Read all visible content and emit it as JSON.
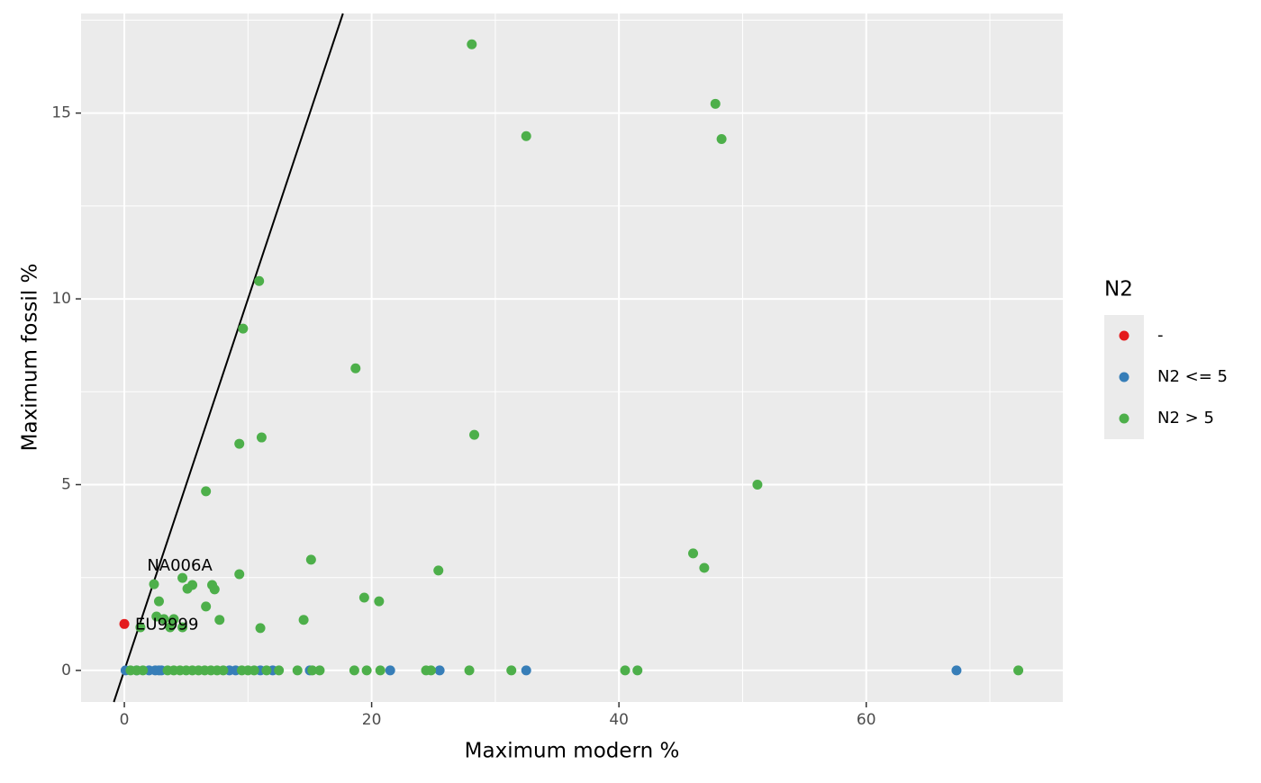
{
  "chart_data": {
    "type": "scatter",
    "x_label": "Maximum modern %",
    "y_label": "Maximum fossil %",
    "legend_title": "N2",
    "legend_position": "right",
    "grid": true,
    "xlim": [
      -3.5,
      75.9
    ],
    "ylim": [
      -0.85,
      17.68
    ],
    "xticks": [
      0,
      20,
      40,
      60
    ],
    "yticks": [
      0,
      5,
      10,
      15
    ],
    "abline": {
      "slope": 1,
      "intercept": 0,
      "color": "#000000"
    },
    "series": [
      {
        "name": "-",
        "color": "#e41a1c",
        "x": [
          0
        ],
        "values": [
          1.25
        ]
      },
      {
        "name": "N2 <= 5",
        "color": "#377eb8",
        "x": [
          0.1,
          1,
          2,
          2.5,
          2.8,
          3,
          8.5,
          9,
          11,
          12,
          15,
          21.5,
          25.5,
          32.5,
          67.3
        ],
        "values": [
          0,
          0,
          0,
          0,
          0,
          0,
          0,
          0,
          0,
          0,
          0,
          0,
          0,
          0,
          0
        ]
      },
      {
        "name": "N2 > 5",
        "color": "#4daf4a",
        "x": [
          28.1,
          47.8,
          32.5,
          48.3,
          10.9,
          9.6,
          18.7,
          28.3,
          9.3,
          11.1,
          6.6,
          51.2,
          46.0,
          46.9,
          15.1,
          25.4,
          9.3,
          4.7,
          2.4,
          5.5,
          7.1,
          5.1,
          7.3,
          2.8,
          19.4,
          20.6,
          6.6,
          7.7,
          14.5,
          11.0,
          3.2,
          4.0,
          3.7,
          4.7,
          2.6,
          1.3,
          0.5,
          1,
          1.5,
          3.5,
          4,
          4.5,
          5,
          5.5,
          6,
          6.5,
          7,
          7.5,
          8,
          9.5,
          10,
          10.5,
          11.5,
          12.5,
          14,
          15.2,
          15.8,
          18.6,
          19.6,
          20.7,
          24.4,
          24.8,
          27.9,
          31.3,
          40.5,
          41.5,
          72.3
        ],
        "values": [
          16.85,
          15.25,
          14.38,
          14.3,
          10.48,
          9.2,
          8.13,
          6.34,
          6.1,
          6.27,
          4.82,
          5.0,
          3.15,
          2.76,
          2.98,
          2.69,
          2.59,
          2.49,
          2.32,
          2.3,
          2.3,
          2.2,
          2.18,
          1.86,
          1.96,
          1.86,
          1.72,
          1.36,
          1.36,
          1.14,
          1.38,
          1.38,
          1.16,
          1.16,
          1.45,
          1.16,
          0,
          0,
          0,
          0,
          0,
          0,
          0,
          0,
          0,
          0,
          0,
          0,
          0,
          0,
          0,
          0,
          0,
          0,
          0,
          0,
          0,
          0,
          0,
          0,
          0,
          0,
          0,
          0,
          0,
          0,
          0
        ]
      }
    ],
    "annotations": [
      {
        "text": "NA006A",
        "x": 4.7,
        "y": 2.49
      },
      {
        "text": "EU9999",
        "x": 0,
        "y": 1.25
      }
    ]
  }
}
